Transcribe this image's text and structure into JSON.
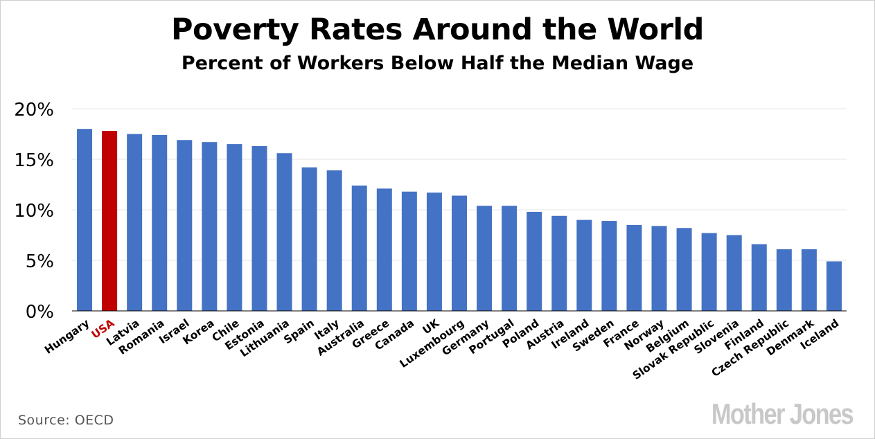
{
  "chart_data": {
    "type": "bar",
    "title": "Poverty Rates Around the World",
    "subtitle": "Percent of Workers Below Half the Median Wage",
    "xlabel": "",
    "ylabel": "",
    "ylim": [
      0,
      20
    ],
    "yticks": [
      0,
      5,
      10,
      15,
      20
    ],
    "ytick_labels": [
      "0%",
      "5%",
      "10%",
      "15%",
      "20%"
    ],
    "grid": true,
    "highlight": "USA",
    "categories": [
      "Hungary",
      "USA",
      "Latvia",
      "Romania",
      "Israel",
      "Korea",
      "Chile",
      "Estonia",
      "Lithuania",
      "Spain",
      "Italy",
      "Australia",
      "Greece",
      "Canada",
      "UK",
      "Luxembourg",
      "Germany",
      "Portugal",
      "Poland",
      "Austria",
      "Ireland",
      "Sweden",
      "France",
      "Norway",
      "Belgium",
      "Slovak Republic",
      "Slovenia",
      "Finland",
      "Czech Republic",
      "Denmark",
      "Iceland"
    ],
    "values": [
      18.0,
      17.8,
      17.5,
      17.4,
      16.9,
      16.7,
      16.5,
      16.3,
      15.6,
      14.2,
      13.9,
      12.4,
      12.1,
      11.8,
      11.7,
      11.4,
      10.4,
      10.4,
      9.8,
      9.4,
      9.0,
      8.9,
      8.5,
      8.4,
      8.2,
      7.7,
      7.5,
      6.6,
      6.1,
      6.1,
      4.9
    ],
    "colors": {
      "bar": "#4472c4",
      "highlight": "#c00000",
      "grid": "#e6e6e6",
      "axis": "#000000"
    }
  },
  "footer": {
    "source": "Source:  OECD",
    "logo": "Mother Jones"
  }
}
